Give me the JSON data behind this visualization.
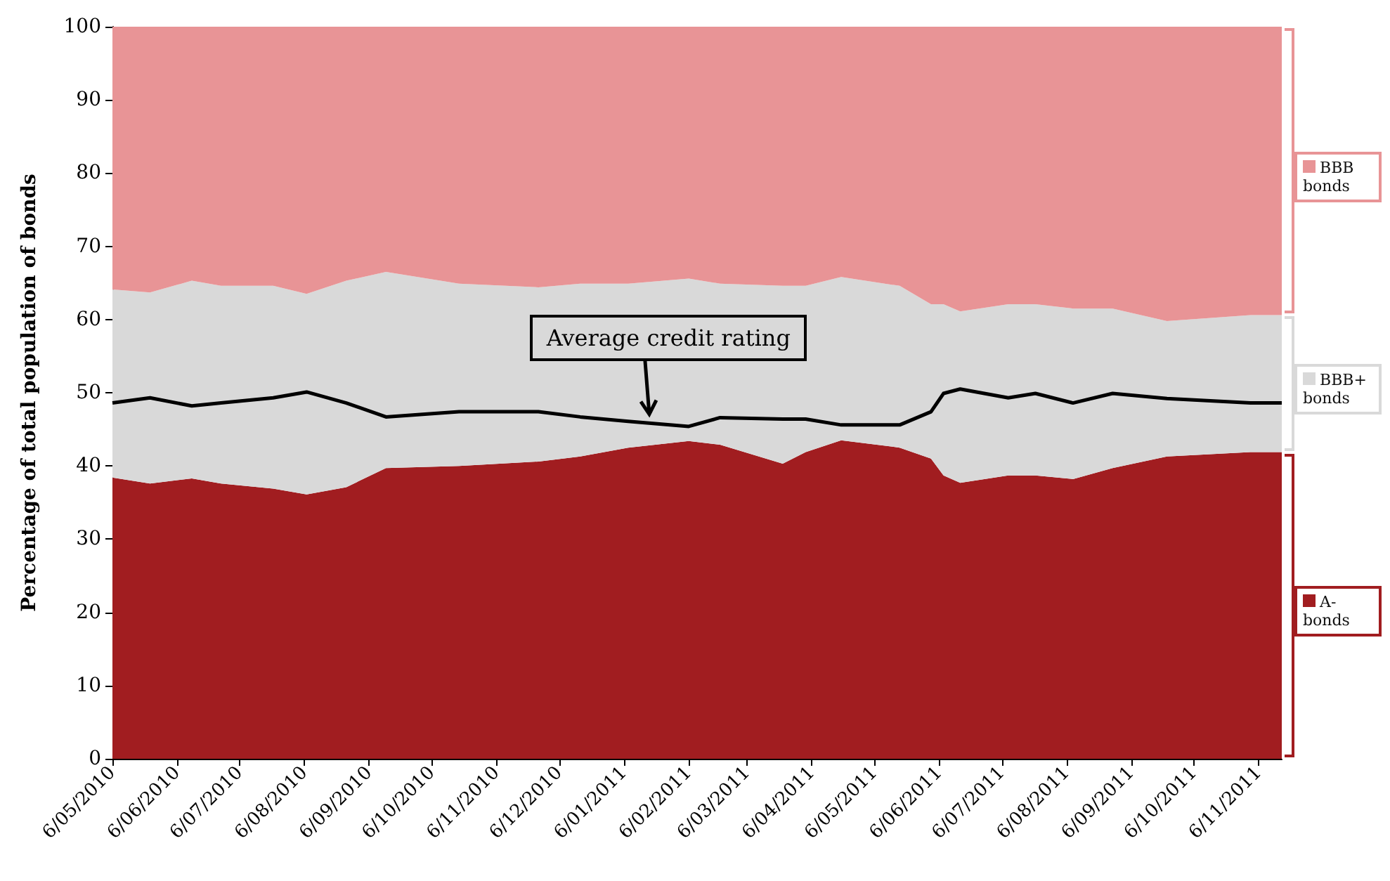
{
  "chart_data": {
    "type": "area",
    "stacked": true,
    "ylabel": "Percentage of total population of bonds",
    "x": [
      "2010-05-06",
      "2010-05-24",
      "2010-06-13",
      "2010-06-27",
      "2010-07-22",
      "2010-08-07",
      "2010-08-26",
      "2010-09-14",
      "2010-10-19",
      "2010-11-26",
      "2010-12-16",
      "2011-01-08",
      "2011-02-06",
      "2011-02-21",
      "2011-03-23",
      "2011-04-03",
      "2011-04-20",
      "2011-05-18",
      "2011-06-02",
      "2011-06-08",
      "2011-06-16",
      "2011-07-09",
      "2011-07-22",
      "2011-08-09",
      "2011-08-28",
      "2011-09-23",
      "2011-11-02",
      "2011-11-17"
    ],
    "series": [
      {
        "name": "A- bonds",
        "color": "#a11d20",
        "values": [
          38.4,
          37.6,
          38.3,
          37.6,
          36.9,
          36.1,
          37.1,
          39.7,
          40.0,
          40.6,
          41.3,
          42.5,
          43.4,
          42.9,
          40.3,
          41.9,
          43.5,
          42.5,
          41.0,
          38.7,
          37.7,
          38.7,
          38.7,
          38.2,
          39.7,
          41.3,
          41.9,
          41.9
        ]
      },
      {
        "name": "BBB+ bonds",
        "color": "#d9d9d9",
        "values": [
          25.7,
          26.1,
          27.0,
          27.0,
          27.7,
          27.4,
          28.2,
          26.8,
          24.9,
          23.8,
          23.6,
          22.4,
          22.2,
          22.0,
          24.3,
          22.7,
          22.3,
          22.1,
          21.1,
          23.4,
          23.4,
          23.4,
          23.4,
          23.3,
          21.8,
          18.5,
          18.7,
          18.7
        ]
      },
      {
        "name": "BBB bonds",
        "color": "#e89496",
        "values": [
          35.9,
          36.3,
          34.7,
          35.4,
          35.4,
          36.5,
          34.7,
          33.5,
          35.1,
          35.6,
          35.1,
          35.1,
          34.4,
          35.1,
          35.4,
          35.4,
          34.2,
          35.4,
          37.9,
          37.9,
          38.9,
          37.9,
          37.9,
          38.5,
          38.5,
          40.2,
          39.4,
          39.4
        ]
      },
      {
        "name": "Average credit rating",
        "type": "line",
        "color": "#000000",
        "values": [
          48.6,
          49.3,
          48.2,
          48.6,
          49.3,
          50.1,
          48.6,
          46.7,
          47.4,
          47.4,
          46.7,
          46.1,
          45.4,
          46.6,
          46.4,
          46.4,
          45.6,
          45.6,
          47.4,
          49.9,
          50.5,
          49.3,
          49.9,
          48.6,
          49.9,
          49.2,
          48.6,
          48.6
        ]
      }
    ],
    "xlim": [
      "2010-05-06",
      "2011-11-17"
    ],
    "xticks": [
      {
        "value": "2010-05-06",
        "label": "6/05/2010"
      },
      {
        "value": "2010-06-06",
        "label": "6/06/2010"
      },
      {
        "value": "2010-07-06",
        "label": "6/07/2010"
      },
      {
        "value": "2010-08-06",
        "label": "6/08/2010"
      },
      {
        "value": "2010-09-06",
        "label": "6/09/2010"
      },
      {
        "value": "2010-10-06",
        "label": "6/10/2010"
      },
      {
        "value": "2010-11-06",
        "label": "6/11/2010"
      },
      {
        "value": "2010-12-06",
        "label": "6/12/2010"
      },
      {
        "value": "2011-01-06",
        "label": "6/01/2011"
      },
      {
        "value": "2011-02-06",
        "label": "6/02/2011"
      },
      {
        "value": "2011-03-06",
        "label": "6/03/2011"
      },
      {
        "value": "2011-04-06",
        "label": "6/04/2011"
      },
      {
        "value": "2011-05-06",
        "label": "6/05/2011"
      },
      {
        "value": "2011-06-06",
        "label": "6/06/2011"
      },
      {
        "value": "2011-07-06",
        "label": "6/07/2011"
      },
      {
        "value": "2011-08-06",
        "label": "6/08/2011"
      },
      {
        "value": "2011-09-06",
        "label": "6/09/2011"
      },
      {
        "value": "2011-10-06",
        "label": "6/10/2011"
      },
      {
        "value": "2011-11-06",
        "label": "6/11/2011"
      }
    ],
    "ylim": [
      0,
      100
    ],
    "yticks": [
      0,
      10,
      20,
      30,
      40,
      50,
      60,
      70,
      80,
      90,
      100
    ],
    "grid": false,
    "legend": "right",
    "marker": "none",
    "line_style": "solid"
  }
}
